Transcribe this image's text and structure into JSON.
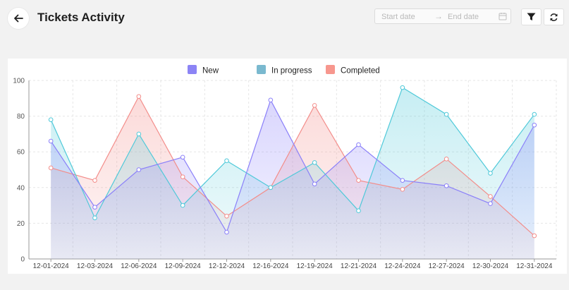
{
  "header": {
    "title": "Tickets Activity",
    "start_placeholder": "Start date",
    "end_placeholder": "End date",
    "range_arrow": "→"
  },
  "colors": {
    "new": "#8b80f9",
    "in_progress": "#4fc9d9",
    "completed": "#f38d8a",
    "legend_new": "#8c84f5",
    "legend_in_progress": "#7ab9cf",
    "legend_completed": "#f7978e"
  },
  "chart_data": {
    "type": "area",
    "categories": [
      "12-01-2024",
      "12-03-2024",
      "12-06-2024",
      "12-09-2024",
      "12-12-2024",
      "12-16-2024",
      "12-19-2024",
      "12-21-2024",
      "12-24-2024",
      "12-27-2024",
      "12-30-2024",
      "12-31-2024"
    ],
    "series": [
      {
        "name": "New",
        "values": [
          66,
          29,
          50,
          57,
          15,
          89,
          42,
          64,
          44,
          41,
          31,
          75
        ]
      },
      {
        "name": "In progress",
        "values": [
          78,
          23,
          70,
          30,
          55,
          40,
          54,
          27,
          96,
          81,
          48,
          81
        ]
      },
      {
        "name": "Completed",
        "values": [
          51,
          44,
          91,
          46,
          24,
          40,
          86,
          44,
          39,
          56,
          35,
          13
        ]
      }
    ],
    "ylim": [
      0,
      100
    ],
    "yticks": [
      "0",
      "20",
      "40",
      "60",
      "80",
      "100"
    ],
    "grid": true,
    "legend": "top-center"
  }
}
